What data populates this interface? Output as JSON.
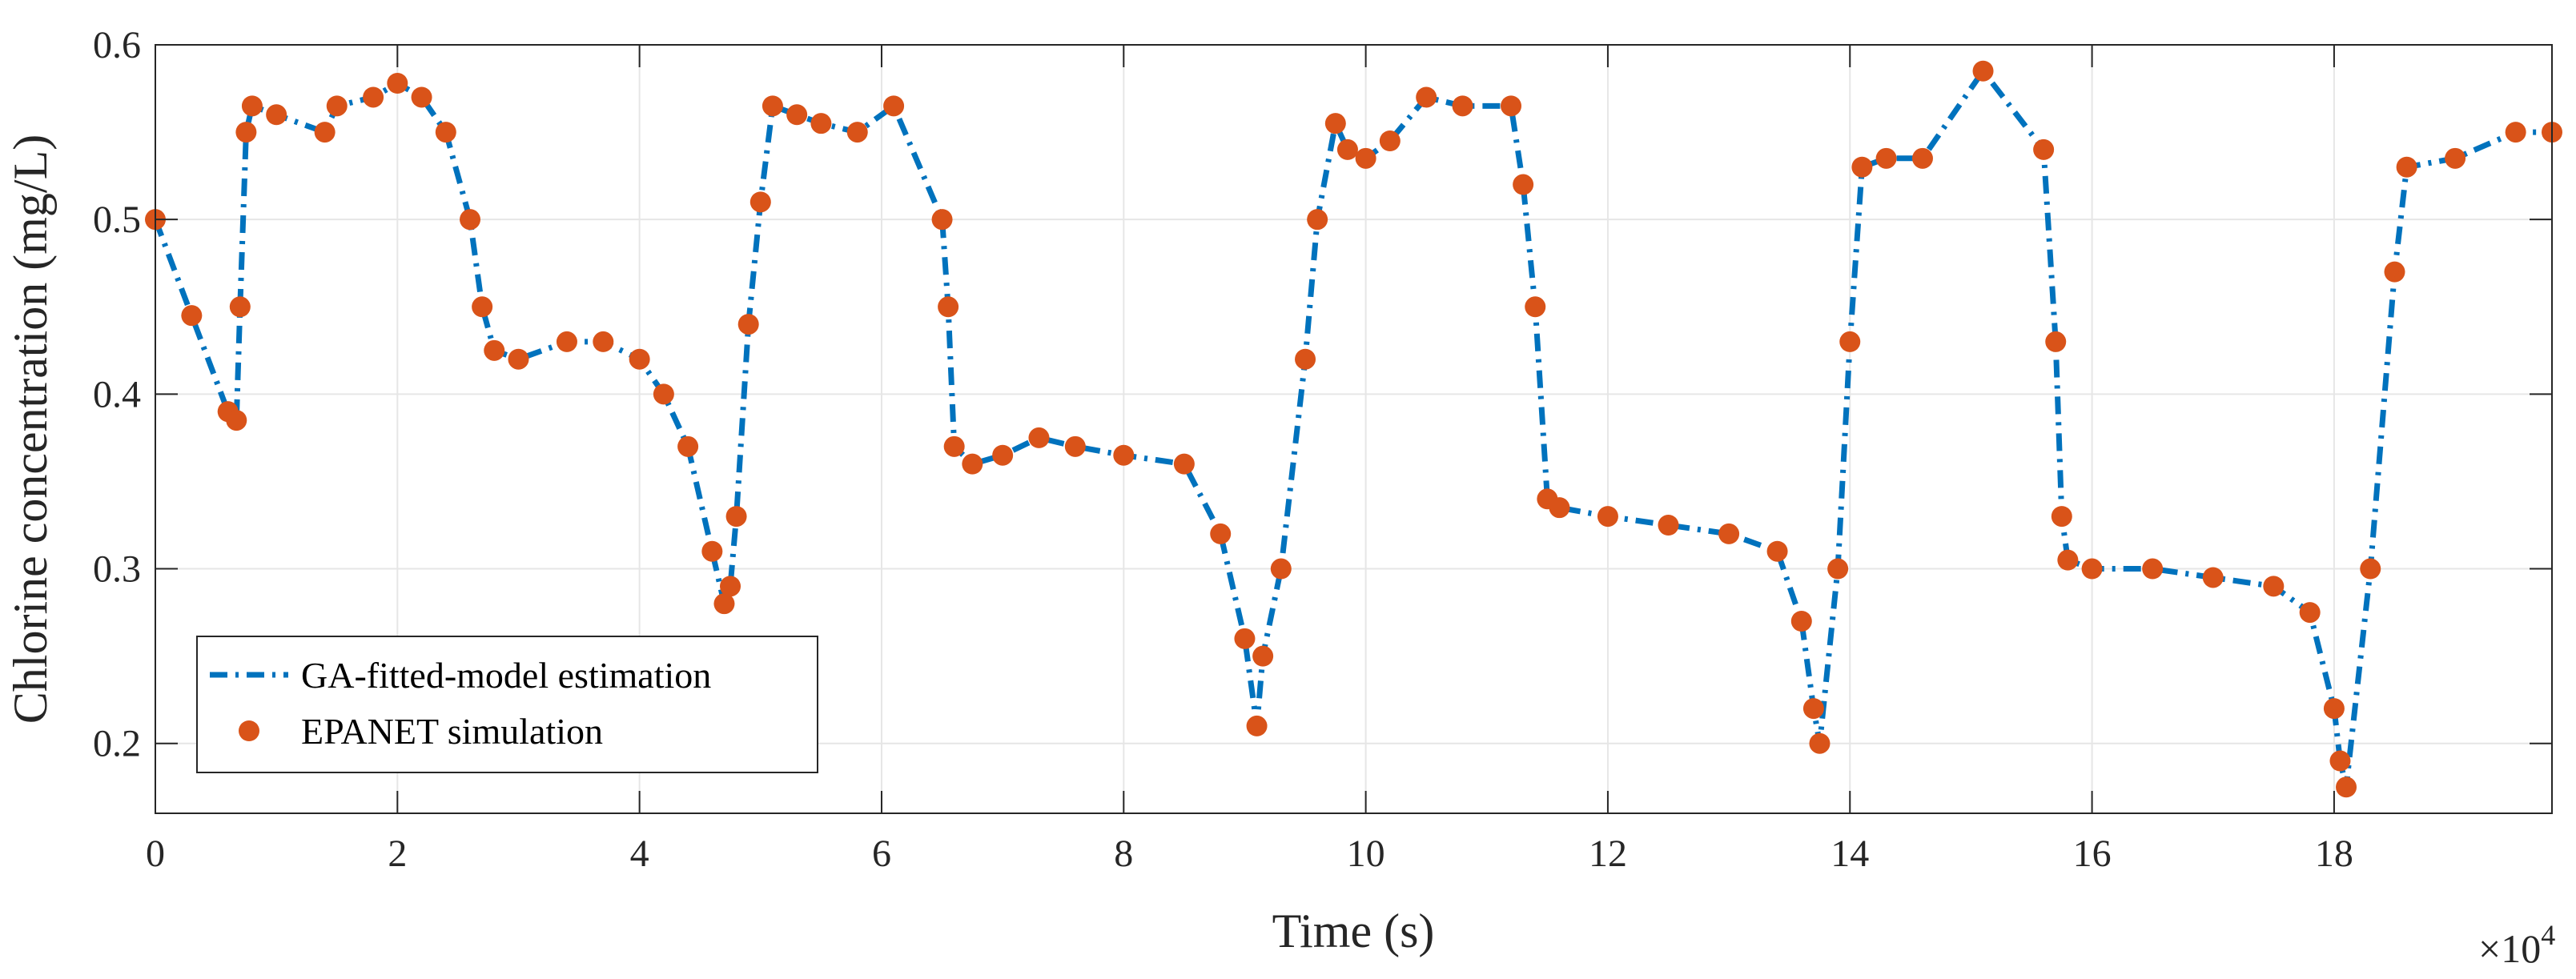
{
  "chart_data": {
    "type": "line",
    "xlabel": "Time (s)",
    "ylabel": "Chlorine concentration (mg/L)",
    "x_multiplier": {
      "base": "×10",
      "exponent": "4"
    },
    "xlim": [
      0,
      19.8
    ],
    "ylim": [
      0.16,
      0.6
    ],
    "x_ticks": [
      0,
      2,
      4,
      6,
      8,
      10,
      12,
      14,
      16,
      18
    ],
    "x_tick_labels": [
      "0",
      "2",
      "4",
      "6",
      "8",
      "10",
      "12",
      "14",
      "16",
      "18"
    ],
    "y_ticks": [
      0.2,
      0.3,
      0.4,
      0.5,
      0.6
    ],
    "y_tick_labels": [
      "0.2",
      "0.3",
      "0.4",
      "0.5",
      "0.6"
    ],
    "grid": true,
    "legend": {
      "placement": "bottom-left"
    },
    "series": [
      {
        "name": "GA-fitted-model estimation",
        "style": "dash-dot line",
        "color": "#0072BD",
        "x": [
          0,
          0.3,
          0.6,
          0.67,
          0.7,
          0.75,
          0.8,
          1.0,
          1.4,
          1.5,
          1.8,
          2.0,
          2.2,
          2.4,
          2.6,
          2.7,
          2.8,
          3.0,
          3.4,
          3.7,
          4.0,
          4.2,
          4.4,
          4.6,
          4.7,
          4.75,
          4.8,
          4.9,
          5.0,
          5.1,
          5.3,
          5.5,
          5.8,
          6.1,
          6.5,
          6.55,
          6.6,
          6.75,
          7.0,
          7.3,
          7.6,
          8.0,
          8.5,
          8.8,
          9.0,
          9.1,
          9.15,
          9.3,
          9.5,
          9.6,
          9.75,
          9.85,
          10.0,
          10.2,
          10.5,
          10.8,
          11.2,
          11.3,
          11.4,
          11.5,
          11.6,
          12.0,
          12.5,
          13.0,
          13.4,
          13.6,
          13.7,
          13.75,
          13.9,
          14.0,
          14.1,
          14.3,
          14.6,
          15.1,
          15.6,
          15.7,
          15.75,
          15.8,
          16.0,
          16.5,
          17.0,
          17.5,
          17.8,
          18.0,
          18.05,
          18.1,
          18.3,
          18.5,
          18.6,
          19.0,
          19.5,
          19.8
        ],
        "y": [
          0.5,
          0.445,
          0.39,
          0.385,
          0.45,
          0.55,
          0.565,
          0.56,
          0.55,
          0.565,
          0.57,
          0.578,
          0.57,
          0.55,
          0.5,
          0.45,
          0.425,
          0.42,
          0.43,
          0.43,
          0.42,
          0.4,
          0.37,
          0.31,
          0.28,
          0.29,
          0.33,
          0.44,
          0.51,
          0.565,
          0.56,
          0.555,
          0.55,
          0.565,
          0.5,
          0.45,
          0.37,
          0.36,
          0.365,
          0.375,
          0.37,
          0.365,
          0.36,
          0.32,
          0.26,
          0.21,
          0.25,
          0.3,
          0.42,
          0.5,
          0.555,
          0.54,
          0.535,
          0.545,
          0.57,
          0.565,
          0.565,
          0.52,
          0.45,
          0.34,
          0.335,
          0.33,
          0.325,
          0.32,
          0.31,
          0.27,
          0.22,
          0.2,
          0.3,
          0.43,
          0.53,
          0.535,
          0.535,
          0.585,
          0.54,
          0.43,
          0.33,
          0.305,
          0.3,
          0.3,
          0.295,
          0.29,
          0.275,
          0.22,
          0.19,
          0.175,
          0.3,
          0.47,
          0.53,
          0.535,
          0.55,
          0.55
        ]
      },
      {
        "name": "EPANET simulation",
        "style": "markers",
        "color": "#D95319",
        "x": [
          0,
          0.3,
          0.6,
          0.67,
          0.7,
          0.75,
          0.8,
          1.0,
          1.4,
          1.5,
          1.8,
          2.0,
          2.2,
          2.4,
          2.6,
          2.7,
          2.8,
          3.0,
          3.4,
          3.7,
          4.0,
          4.2,
          4.4,
          4.6,
          4.7,
          4.75,
          4.8,
          4.9,
          5.0,
          5.1,
          5.3,
          5.5,
          5.8,
          6.1,
          6.5,
          6.55,
          6.6,
          6.75,
          7.0,
          7.3,
          7.6,
          8.0,
          8.5,
          8.8,
          9.0,
          9.1,
          9.15,
          9.3,
          9.5,
          9.6,
          9.75,
          9.85,
          10.0,
          10.2,
          10.5,
          10.8,
          11.2,
          11.3,
          11.4,
          11.5,
          11.6,
          12.0,
          12.5,
          13.0,
          13.4,
          13.6,
          13.7,
          13.75,
          13.9,
          14.0,
          14.1,
          14.3,
          14.6,
          15.1,
          15.6,
          15.7,
          15.75,
          15.8,
          16.0,
          16.5,
          17.0,
          17.5,
          17.8,
          18.0,
          18.05,
          18.1,
          18.3,
          18.5,
          18.6,
          19.0,
          19.5,
          19.8
        ],
        "y": [
          0.5,
          0.445,
          0.39,
          0.385,
          0.45,
          0.55,
          0.565,
          0.56,
          0.55,
          0.565,
          0.57,
          0.578,
          0.57,
          0.55,
          0.5,
          0.45,
          0.425,
          0.42,
          0.43,
          0.43,
          0.42,
          0.4,
          0.37,
          0.31,
          0.28,
          0.29,
          0.33,
          0.44,
          0.51,
          0.565,
          0.56,
          0.555,
          0.55,
          0.565,
          0.5,
          0.45,
          0.37,
          0.36,
          0.365,
          0.375,
          0.37,
          0.365,
          0.36,
          0.32,
          0.26,
          0.21,
          0.25,
          0.3,
          0.42,
          0.5,
          0.555,
          0.54,
          0.535,
          0.545,
          0.57,
          0.565,
          0.565,
          0.52,
          0.45,
          0.34,
          0.335,
          0.33,
          0.325,
          0.32,
          0.31,
          0.27,
          0.22,
          0.2,
          0.3,
          0.43,
          0.53,
          0.535,
          0.535,
          0.585,
          0.54,
          0.43,
          0.33,
          0.305,
          0.3,
          0.3,
          0.295,
          0.29,
          0.275,
          0.22,
          0.19,
          0.175,
          0.3,
          0.47,
          0.53,
          0.535,
          0.55,
          0.55
        ]
      }
    ]
  }
}
